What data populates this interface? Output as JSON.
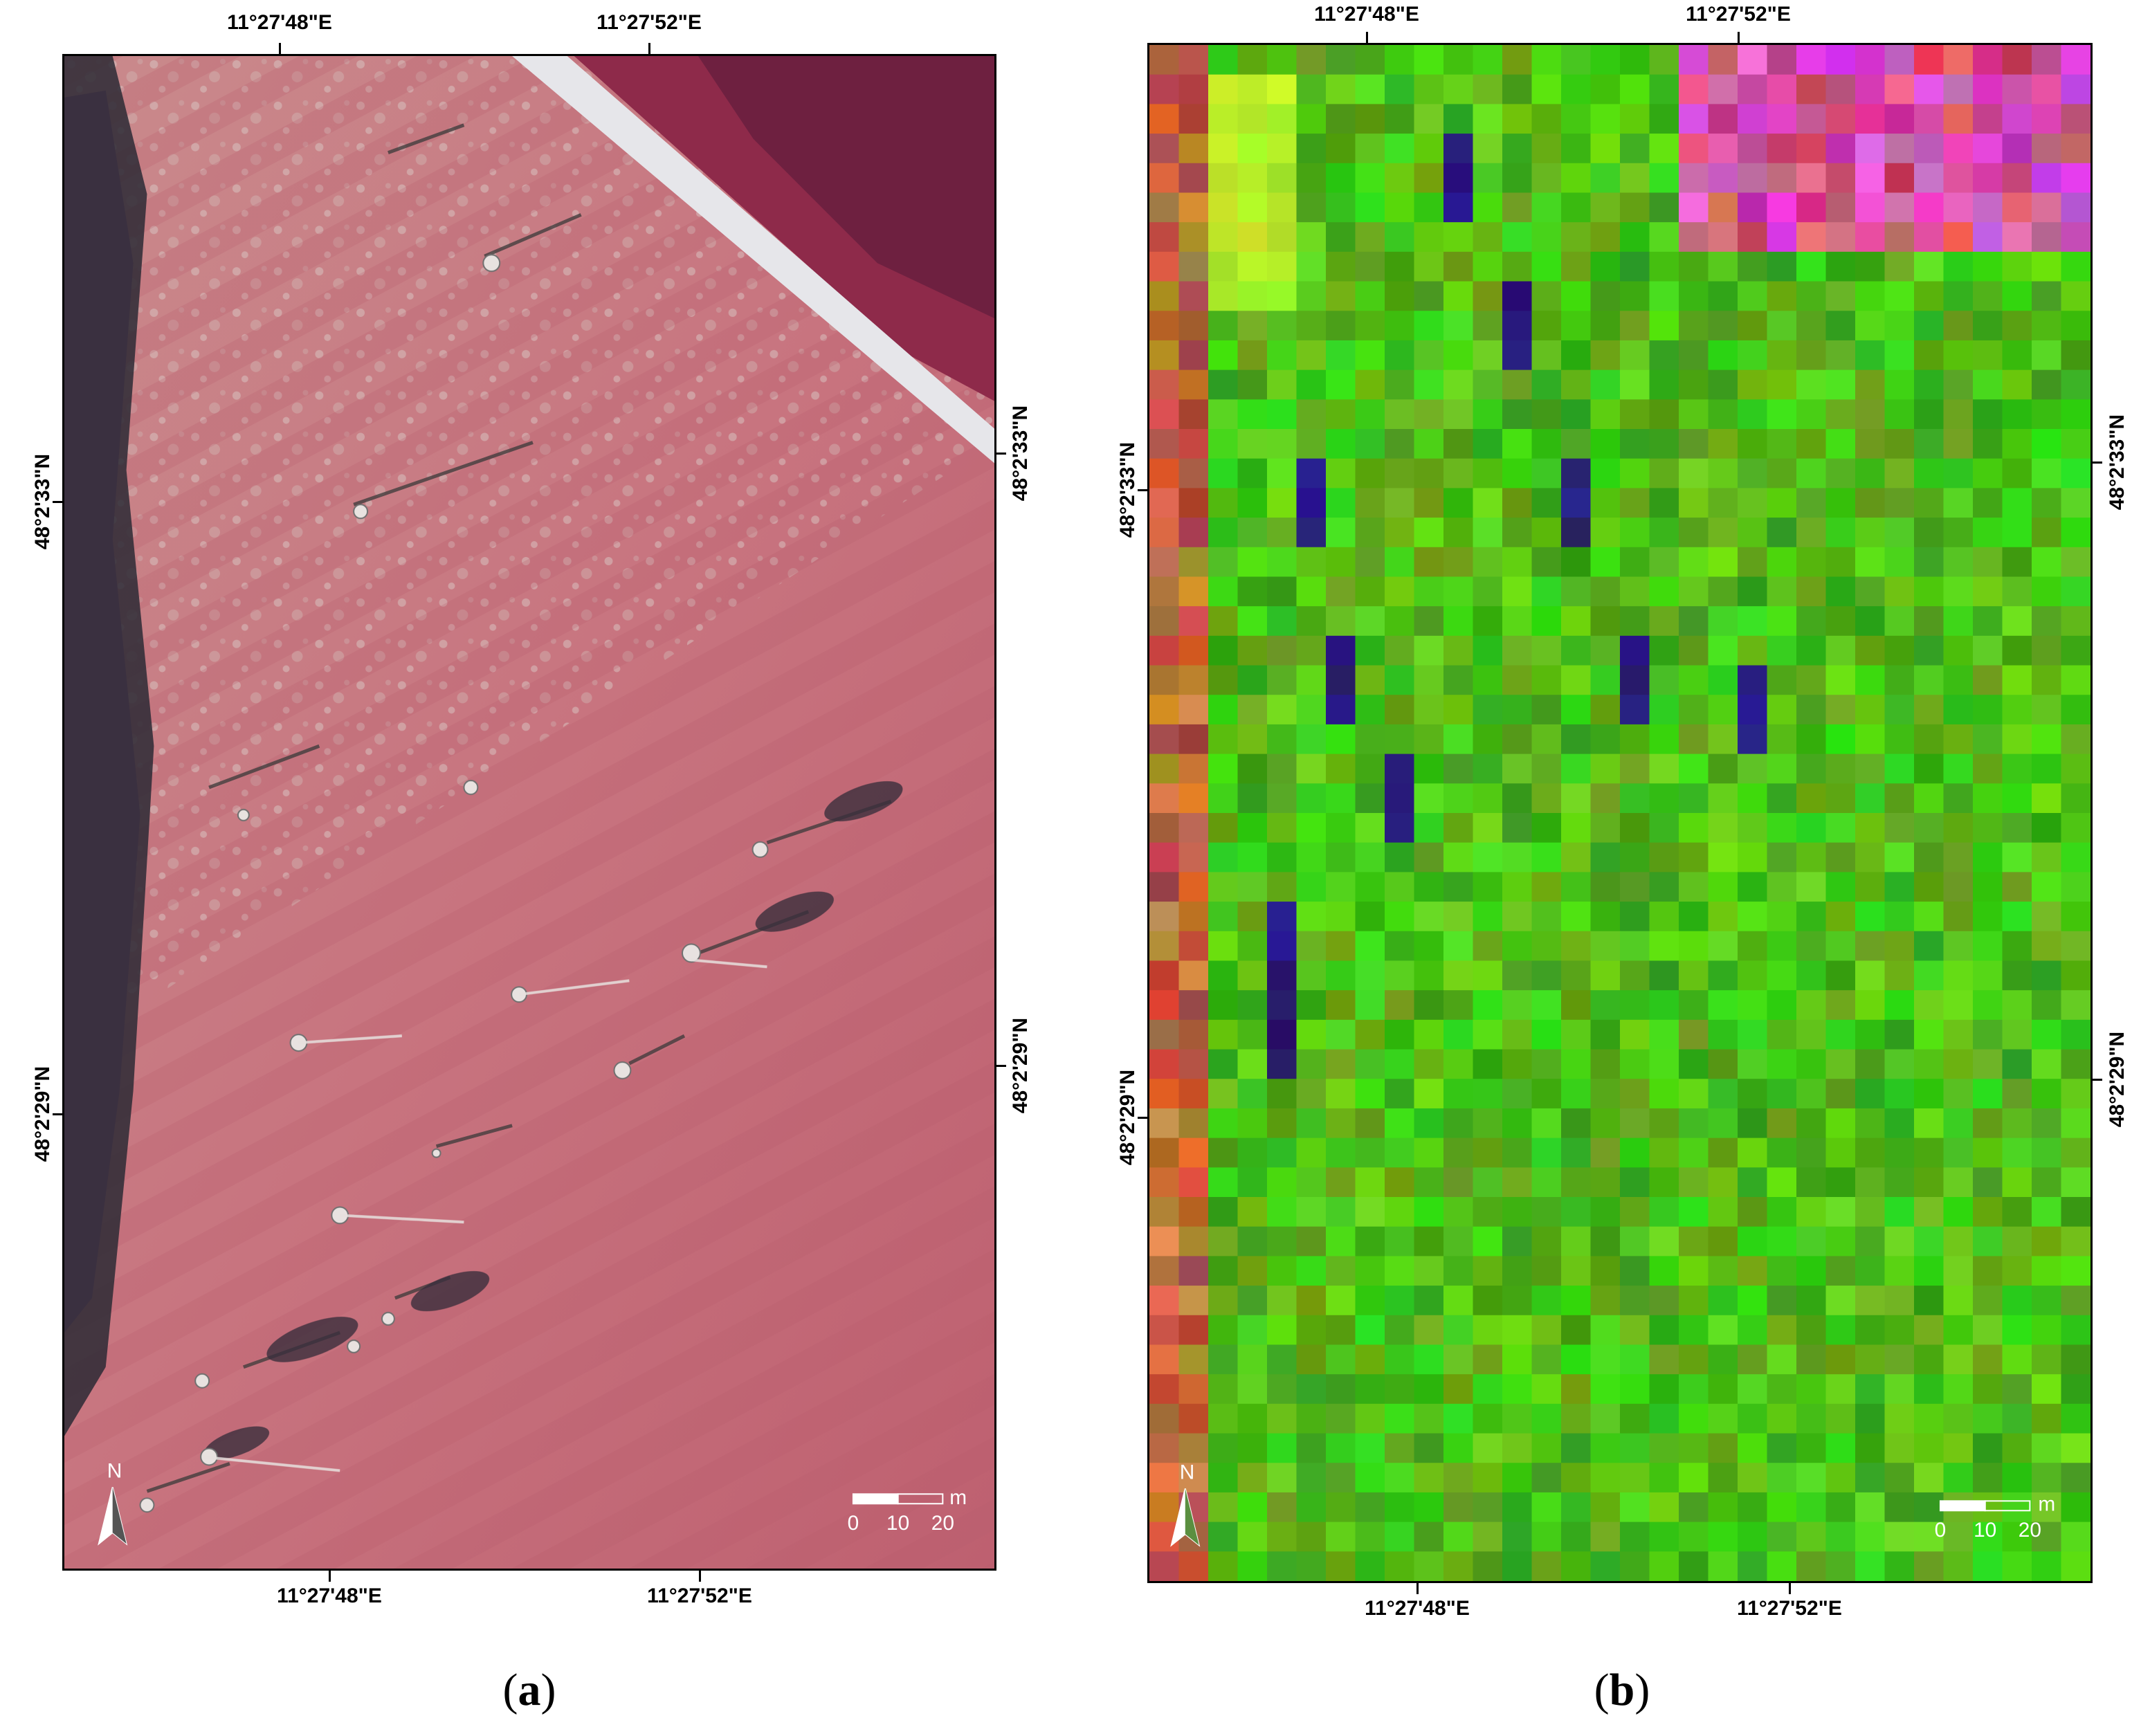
{
  "panels": [
    {
      "label_open": "(",
      "label_letter": "a",
      "label_close": ")",
      "top_ticks": [
        "11°27'48\"E",
        "11°27'52\"E"
      ],
      "bottom_ticks": [
        "11°27'48\"E",
        "11°27'52\"E"
      ],
      "left_ticks": [
        "48°2'33\"N",
        "48°2'29\"N"
      ],
      "right_ticks": [
        "48°2'33\"N",
        "48°2'29\"N"
      ],
      "north": "N",
      "scale": {
        "unit": "m",
        "labels": [
          "0",
          "10",
          "20"
        ]
      }
    },
    {
      "label_open": "(",
      "label_letter": "b",
      "label_close": ")",
      "top_ticks": [
        "11°27'48\"E",
        "11°27'52\"E"
      ],
      "bottom_ticks": [
        "11°27'48\"E",
        "11°27'52\"E"
      ],
      "left_ticks": [
        "48°2'33\"N",
        "48°2'29\"N"
      ],
      "right_ticks": [
        "48°2'33\"N",
        "48°2'29\"N"
      ],
      "north": "N",
      "scale": {
        "unit": "m",
        "labels": [
          "0",
          "10",
          "20"
        ]
      }
    }
  ],
  "colors": {
    "cir_field": "#c8747f",
    "cir_forest": "#2b2a35",
    "cir_road": "#e6e6ea",
    "lowres_green": "#3fbf1f",
    "lowres_dark": "#2a0a3a",
    "lowres_magenta": "#e040c0"
  }
}
